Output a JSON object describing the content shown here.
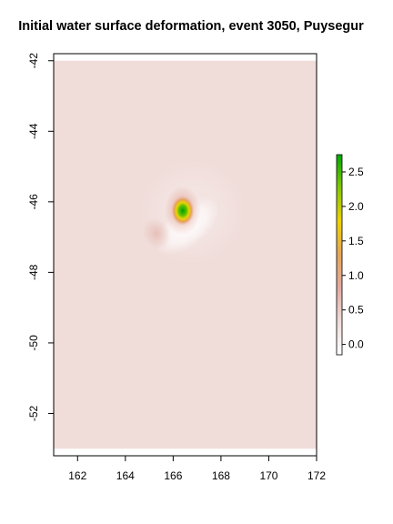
{
  "chart_data": {
    "type": "heatmap",
    "title": "Initial water surface deformation, event 3050, Puysegur",
    "xlabel": "",
    "ylabel": "",
    "xlim": [
      161,
      172
    ],
    "ylim": [
      -53.2,
      -41.8
    ],
    "x_ticks": [
      "162",
      "164",
      "166",
      "168",
      "170",
      "172"
    ],
    "y_ticks": [
      "-42",
      "-44",
      "-46",
      "-48",
      "-50",
      "-52"
    ],
    "data_extent": {
      "lon": [
        161,
        172
      ],
      "lat": [
        -53,
        -42
      ]
    },
    "background_value": 0.0,
    "features": [
      {
        "type": "uplift_peak",
        "lon": 166.4,
        "lat": -46.25,
        "max": 2.7
      },
      {
        "type": "subsidence_trough",
        "lon": 166.6,
        "lat": -46.7,
        "min": -0.1
      },
      {
        "type": "weak_uplift_patch",
        "lon": 165.3,
        "lat": -46.9,
        "value": 0.25
      }
    ],
    "colorbar": {
      "min": -0.15,
      "max": 2.75,
      "ticks": [
        "0.0",
        "0.5",
        "1.0",
        "1.5",
        "2.0",
        "2.5"
      ],
      "colors": [
        "#ffffff",
        "#f0dcd9",
        "#e2aaa0",
        "#e7a55a",
        "#eed200",
        "#84c800",
        "#00a800"
      ]
    }
  }
}
